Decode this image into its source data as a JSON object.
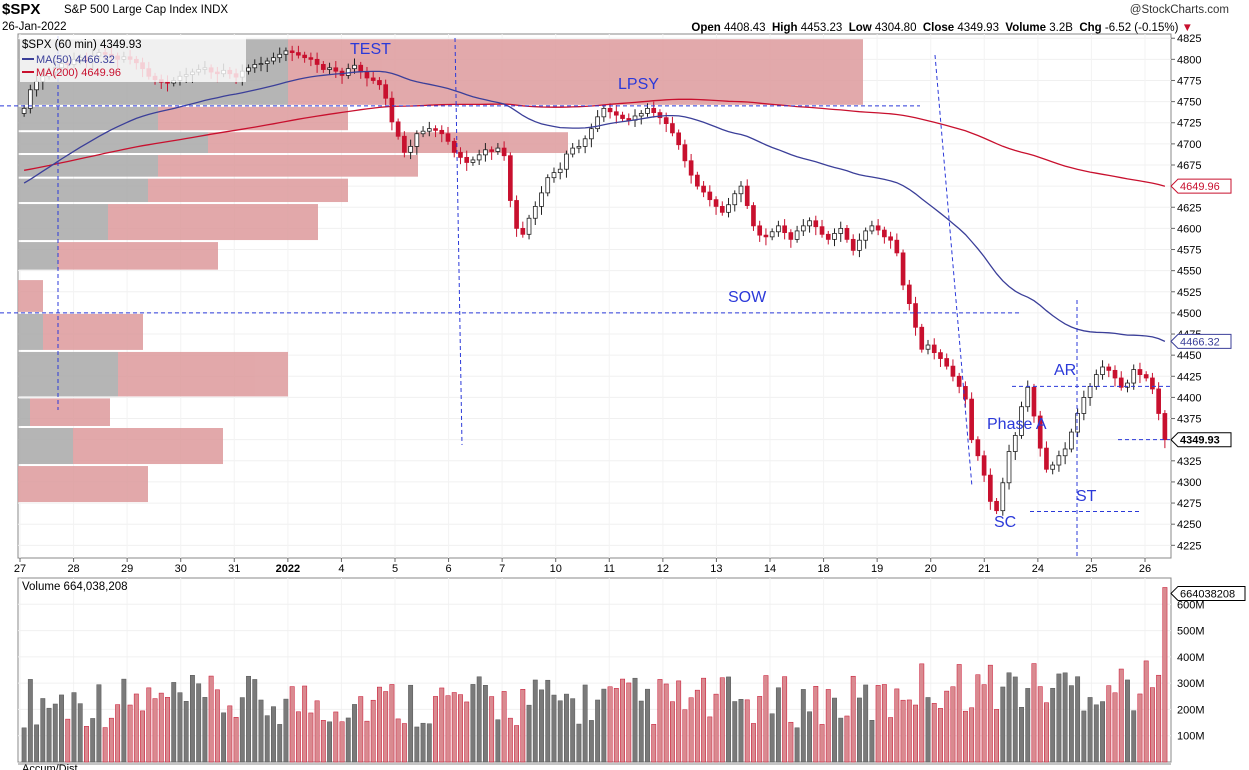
{
  "header": {
    "symbol": "$SPX",
    "name": "S&P 500 Large Cap Index",
    "exchange": "INDX",
    "date": "26-Jan-2022",
    "brand": "@StockCharts.com",
    "open_label": "Open",
    "open": "4408.43",
    "high_label": "High",
    "high": "4453.23",
    "low_label": "Low",
    "low": "4304.80",
    "close_label": "Close",
    "close": "4349.93",
    "volume_label": "Volume",
    "volume": "3.2B",
    "chg_label": "Chg",
    "chg": "-6.52 (-0.15%)",
    "chg_arrow": "▼"
  },
  "legend": {
    "price": "$SPX (60 min) 4349.93",
    "ma50": "MA(50) 4466.32",
    "ma200": "MA(200) 4649.96",
    "volume": "Volume 664,038,208",
    "bottom_panel": "Accum/Dist"
  },
  "colors": {
    "up": "#555555",
    "down": "#c8102e",
    "ma50": "#3b3f99",
    "ma200": "#c8102e",
    "annotation": "#2b39d9",
    "vbp_up": "#a9a9a9",
    "vbp_down": "#dd9a9c"
  },
  "annotations": [
    "TEST",
    "LPSY",
    "SOW",
    "AR",
    "Phase A",
    "ST",
    "SC"
  ],
  "chart_data": {
    "type": "candlestick",
    "interval": "60 min",
    "ylim": [
      4210,
      4830
    ],
    "yticks": [
      4225,
      4250,
      4275,
      4300,
      4325,
      4350,
      4375,
      4400,
      4425,
      4450,
      4475,
      4500,
      4525,
      4550,
      4575,
      4600,
      4625,
      4650,
      4675,
      4700,
      4725,
      4750,
      4775,
      4800,
      4825
    ],
    "x_labels": [
      "27",
      "28",
      "29",
      "30",
      "31",
      "2022",
      "4",
      "5",
      "6",
      "7",
      "10",
      "11",
      "12",
      "13",
      "14",
      "18",
      "19",
      "20",
      "21",
      "24",
      "25",
      "26"
    ],
    "price_tags": {
      "ma200": "4649.96",
      "ma50": "4466.32",
      "close": "4349.93"
    },
    "volume_ticks": [
      "100M",
      "200M",
      "300M",
      "400M",
      "500M",
      "600M"
    ],
    "volume_tag": "664038208",
    "key_levels": [
      4745,
      4500,
      4413,
      4265,
      4350
    ],
    "closes": [
      4742,
      4764,
      4774,
      4780,
      4785,
      4790,
      4795,
      4794,
      4800,
      4802,
      4798,
      4804,
      4808,
      4806,
      4804,
      4800,
      4803,
      4800,
      4796,
      4789,
      4780,
      4776,
      4773,
      4772,
      4775,
      4780,
      4782,
      4785,
      4788,
      4790,
      4785,
      4783,
      4787,
      4783,
      4779,
      4786,
      4790,
      4794,
      4795,
      4798,
      4802,
      4806,
      4810,
      4808,
      4805,
      4802,
      4800,
      4794,
      4788,
      4790,
      4786,
      4781,
      4789,
      4793,
      4785,
      4778,
      4775,
      4770,
      4754,
      4726,
      4709,
      4690,
      4697,
      4712,
      4715,
      4718,
      4716,
      4712,
      4703,
      4690,
      4684,
      4678,
      4681,
      4687,
      4693,
      4691,
      4695,
      4686,
      4633,
      4600,
      4593,
      4612,
      4626,
      4642,
      4660,
      4666,
      4670,
      4688,
      4695,
      4697,
      4706,
      4718,
      4732,
      4742,
      4738,
      4734,
      4730,
      4728,
      4733,
      4736,
      4742,
      4737,
      4731,
      4724,
      4713,
      4699,
      4680,
      4663,
      4650,
      4643,
      4634,
      4626,
      4619,
      4628,
      4641,
      4650,
      4627,
      4603,
      4592,
      4590,
      4596,
      4603,
      4595,
      4587,
      4597,
      4603,
      4609,
      4602,
      4593,
      4587,
      4594,
      4600,
      4587,
      4574,
      4586,
      4597,
      4603,
      4598,
      4590,
      4586,
      4571,
      4533,
      4511,
      4483,
      4457,
      4462,
      4453,
      4446,
      4437,
      4425,
      4413,
      4398,
      4350,
      4331,
      4308,
      4277,
      4266,
      4299,
      4336,
      4355,
      4389,
      4412,
      4378,
      4340,
      4315,
      4320,
      4331,
      4339,
      4359,
      4381,
      4400,
      4413,
      4427,
      4436,
      4432,
      4423,
      4412,
      4417,
      4433,
      4427,
      4423,
      4410,
      4381,
      4350
    ],
    "series": [
      {
        "name": "MA(50)",
        "last": 4466.32
      },
      {
        "name": "MA(200)",
        "last": 4649.96
      },
      {
        "name": "Volume",
        "last": 664038208
      }
    ]
  }
}
